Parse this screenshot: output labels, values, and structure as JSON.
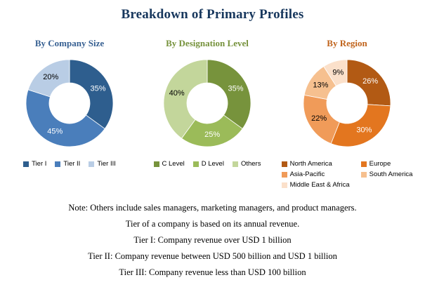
{
  "page": {
    "title": "Breakdown of Primary Profiles",
    "title_color": "#17375D",
    "background": "#FFFFFF"
  },
  "chart_data": [
    {
      "type": "pie",
      "subtype": "donut",
      "title": "By Company Size",
      "title_color": "#376092",
      "legend_position": "bottom",
      "segments": [
        {
          "label": "Tier I",
          "value": 35,
          "pct": "35%",
          "color": "#2E5E8E",
          "pct_color": "#FFFFFF"
        },
        {
          "label": "Tier II",
          "value": 45,
          "pct": "45%",
          "color": "#4A7EBB",
          "pct_color": "#FFFFFF"
        },
        {
          "label": "Tier III",
          "value": 20,
          "pct": "20%",
          "color": "#B9CDE5",
          "pct_color": "#000000"
        }
      ]
    },
    {
      "type": "pie",
      "subtype": "donut",
      "title": "By Designation Level",
      "title_color": "#76923C",
      "legend_position": "bottom",
      "segments": [
        {
          "label": "C Level",
          "value": 35,
          "pct": "35%",
          "color": "#77933C",
          "pct_color": "#FFFFFF"
        },
        {
          "label": "D Level",
          "value": 25,
          "pct": "25%",
          "color": "#9BBB59",
          "pct_color": "#FFFFFF"
        },
        {
          "label": "Others",
          "value": 40,
          "pct": "40%",
          "color": "#C3D69B",
          "pct_color": "#000000"
        }
      ]
    },
    {
      "type": "pie",
      "subtype": "donut",
      "title": "By Region",
      "title_color": "#C0631B",
      "legend_position": "bottom",
      "segments": [
        {
          "label": "North America",
          "value": 26,
          "pct": "26%",
          "color": "#B25A14",
          "pct_color": "#FFFFFF"
        },
        {
          "label": "Europe",
          "value": 30,
          "pct": "30%",
          "color": "#E3761F",
          "pct_color": "#FFFFFF"
        },
        {
          "label": "Asia-Pacific",
          "value": 22,
          "pct": "22%",
          "color": "#F09B59",
          "pct_color": "#000000"
        },
        {
          "label": "South America",
          "value": 13,
          "pct": "13%",
          "color": "#F6C08F",
          "pct_color": "#000000"
        },
        {
          "label": "Middle East & Africa",
          "value": 9,
          "pct": "9%",
          "color": "#FBE0CA",
          "pct_color": "#000000"
        }
      ]
    }
  ],
  "notes": [
    "Note: Others include sales managers, marketing managers, and product managers.",
    "Tier of a company is based on its annual revenue.",
    "Tier I: Company revenue over USD 1 billion",
    "Tier II: Company revenue between USD 500 billion and USD 1 billion",
    "Tier III: Company revenue less than USD 100 billion"
  ]
}
